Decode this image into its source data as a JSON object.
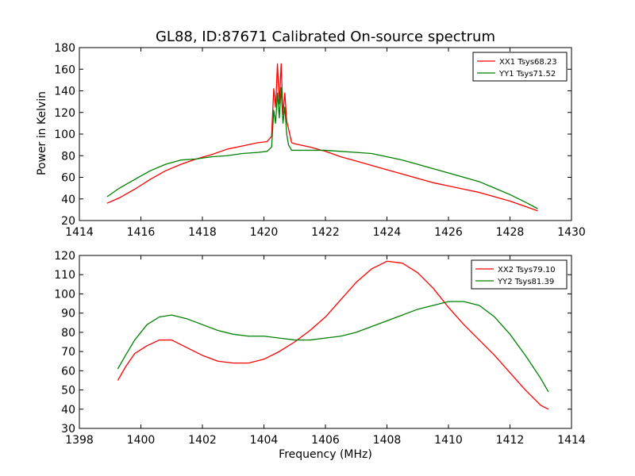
{
  "chart_data": [
    {
      "type": "line",
      "title": "GL88, ID:87671 Calibrated On-source spectrum",
      "xlabel": "",
      "ylabel": "Power in Kelvin",
      "xlim": [
        1414,
        1430
      ],
      "ylim": [
        20,
        180
      ],
      "xticks": [
        1414,
        1416,
        1418,
        1420,
        1422,
        1424,
        1426,
        1428,
        1430
      ],
      "yticks": [
        20,
        40,
        60,
        80,
        100,
        120,
        140,
        160,
        180
      ],
      "grid": false,
      "legend_position": "top-right",
      "series": [
        {
          "name": "XX1 Tsys68.23",
          "color": "#ff0000",
          "x": [
            1414.9,
            1415.3,
            1415.8,
            1416.3,
            1416.8,
            1417.3,
            1417.8,
            1418.3,
            1418.8,
            1419.3,
            1419.8,
            1420.1,
            1420.25,
            1420.32,
            1420.38,
            1420.44,
            1420.5,
            1420.56,
            1420.62,
            1420.68,
            1420.74,
            1420.8,
            1420.9,
            1421.0,
            1421.5,
            1422.0,
            1422.5,
            1423.0,
            1423.5,
            1424.0,
            1424.5,
            1425.0,
            1425.5,
            1426.0,
            1426.5,
            1427.0,
            1427.5,
            1428.0,
            1428.5,
            1428.9
          ],
          "y": [
            36,
            41,
            49,
            58,
            66,
            72,
            77,
            81,
            86,
            89,
            92,
            93,
            98,
            142,
            125,
            165,
            128,
            165,
            118,
            138,
            112,
            105,
            92,
            91,
            88,
            84,
            79,
            75,
            71,
            67,
            63,
            59,
            55,
            52,
            49,
            46,
            42,
            38,
            33,
            29
          ]
        },
        {
          "name": "YY1 Tsys71.52",
          "color": "#008000",
          "x": [
            1414.9,
            1415.3,
            1415.8,
            1416.3,
            1416.8,
            1417.3,
            1417.8,
            1418.3,
            1418.8,
            1419.3,
            1419.8,
            1420.1,
            1420.25,
            1420.32,
            1420.38,
            1420.44,
            1420.5,
            1420.56,
            1420.62,
            1420.68,
            1420.74,
            1420.8,
            1420.9,
            1421.0,
            1421.5,
            1422.0,
            1422.5,
            1423.0,
            1423.5,
            1424.0,
            1424.5,
            1425.0,
            1425.5,
            1426.0,
            1426.5,
            1427.0,
            1427.5,
            1428.0,
            1428.5,
            1428.9
          ],
          "y": [
            42,
            50,
            58,
            66,
            72,
            76,
            77,
            79,
            80,
            82,
            83,
            84,
            88,
            122,
            110,
            138,
            115,
            143,
            110,
            125,
            100,
            90,
            85,
            85,
            85,
            85,
            84,
            83,
            82,
            79,
            76,
            72,
            68,
            64,
            60,
            56,
            50,
            44,
            37,
            31
          ]
        }
      ]
    },
    {
      "type": "line",
      "title": "",
      "xlabel": "Frequency (MHz)",
      "ylabel": "",
      "xlim": [
        1398,
        1414
      ],
      "ylim": [
        30,
        120
      ],
      "xticks": [
        1398,
        1400,
        1402,
        1404,
        1406,
        1408,
        1410,
        1412,
        1414
      ],
      "yticks": [
        30,
        40,
        50,
        60,
        70,
        80,
        90,
        100,
        110,
        120
      ],
      "grid": false,
      "legend_position": "top-right",
      "series": [
        {
          "name": "XX2 Tsys79.10",
          "color": "#ff0000",
          "x": [
            1399.25,
            1399.5,
            1399.8,
            1400.2,
            1400.6,
            1401.0,
            1401.5,
            1402.0,
            1402.5,
            1403.0,
            1403.5,
            1404.0,
            1404.5,
            1405.0,
            1405.5,
            1406.0,
            1406.5,
            1407.0,
            1407.5,
            1408.0,
            1408.5,
            1409.0,
            1409.5,
            1410.0,
            1410.5,
            1411.0,
            1411.5,
            1412.0,
            1412.5,
            1413.0,
            1413.25
          ],
          "y": [
            55,
            62,
            69,
            73,
            76,
            76,
            72,
            68,
            65,
            64,
            64,
            66,
            70,
            75,
            81,
            88,
            97,
            106,
            113,
            117,
            116,
            111,
            103,
            93,
            84,
            76,
            68,
            59,
            50,
            42,
            40
          ]
        },
        {
          "name": "YY2 Tsys81.39",
          "color": "#008000",
          "x": [
            1399.25,
            1399.5,
            1399.8,
            1400.2,
            1400.6,
            1401.0,
            1401.5,
            1402.0,
            1402.5,
            1403.0,
            1403.5,
            1404.0,
            1404.5,
            1405.0,
            1405.5,
            1406.0,
            1406.5,
            1407.0,
            1407.5,
            1408.0,
            1408.5,
            1409.0,
            1409.5,
            1410.0,
            1410.5,
            1411.0,
            1411.5,
            1412.0,
            1412.5,
            1413.0,
            1413.25
          ],
          "y": [
            61,
            68,
            76,
            84,
            88,
            89,
            87,
            84,
            81,
            79,
            78,
            78,
            77,
            76,
            76,
            77,
            78,
            80,
            83,
            86,
            89,
            92,
            94,
            96,
            96,
            94,
            88,
            79,
            68,
            56,
            49
          ]
        }
      ]
    }
  ]
}
